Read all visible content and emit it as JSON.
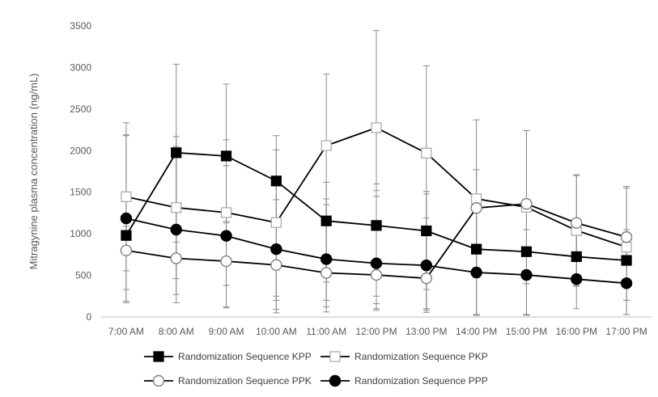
{
  "chart_data": {
    "type": "line",
    "title": "",
    "xlabel": "",
    "ylabel": "Mitragynine plasma concentration (ng/mL)",
    "ylim": [
      0,
      3500
    ],
    "yticks": [
      0,
      500,
      1000,
      1500,
      2000,
      2500,
      3000,
      3500
    ],
    "grid": false,
    "legend_position": "bottom",
    "categories": [
      "7:00 AM",
      "8:00 AM",
      "9:00 AM",
      "10:00 AM",
      "11:00 AM",
      "12:00 PM",
      "13:00 PM",
      "14:00 PM",
      "15:00 PM",
      "16:00 PM",
      "17:00 PM"
    ],
    "series": [
      {
        "name": "Randomization Sequence KPP",
        "marker": "square-filled",
        "color": "#000000",
        "values": [
          980,
          1975,
          1935,
          1635,
          1155,
          1100,
          1035,
          815,
          785,
          725,
          680
        ],
        "error_upper": [
          2190,
          3040,
          2800,
          2010,
          1620,
          1600,
          1190,
          1770,
          1340,
          1000,
          1050
        ],
        "error_lower": [
          170,
          900,
          1150,
          250,
          420,
          250,
          330,
          20,
          400,
          380,
          200
        ]
      },
      {
        "name": "Randomization Sequence PKP",
        "marker": "square-open",
        "color": "#000000",
        "values": [
          1445,
          1315,
          1255,
          1135,
          2060,
          2275,
          1970,
          1420,
          1320,
          1040,
          840
        ],
        "error_upper": [
          2335,
          2170,
          2130,
          2180,
          2920,
          3445,
          3020,
          2370,
          2240,
          1710,
          1570
        ],
        "error_lower": [
          555,
          460,
          380,
          90,
          200,
          80,
          100,
          470,
          400,
          370,
          200
        ]
      },
      {
        "name": "Randomization Sequence PPK",
        "marker": "circle-open",
        "color": "#000000",
        "values": [
          800,
          705,
          670,
          625,
          530,
          505,
          465,
          1310,
          1360,
          1130,
          960
        ],
        "error_upper": [
          1090,
          1030,
          1130,
          1410,
          1350,
          1520,
          1480,
          1310,
          2240,
          1700,
          1550
        ],
        "error_lower": [
          330,
          170,
          110,
          200,
          60,
          160,
          55,
          20,
          30,
          440,
          30
        ]
      },
      {
        "name": "Randomization Sequence PPP",
        "marker": "circle-filled",
        "color": "#000000",
        "values": [
          1185,
          1050,
          975,
          815,
          695,
          645,
          620,
          535,
          505,
          455,
          405
        ],
        "error_upper": [
          2180,
          2050,
          1820,
          1620,
          1420,
          1450,
          1510,
          1310,
          1050,
          1020,
          1000
        ],
        "error_lower": [
          190,
          270,
          120,
          50,
          120,
          100,
          80,
          30,
          20,
          100,
          30
        ]
      }
    ]
  }
}
